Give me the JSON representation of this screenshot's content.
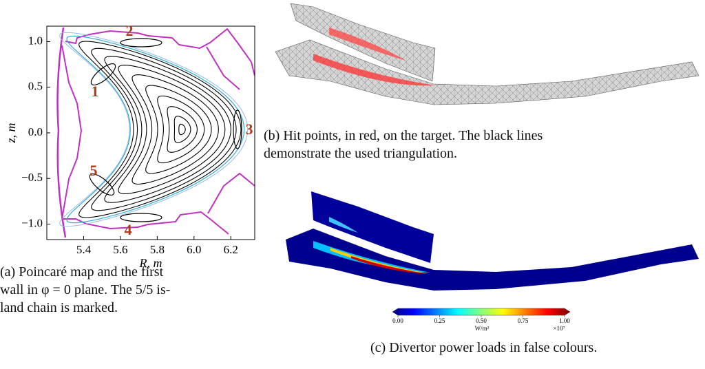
{
  "panel_a": {
    "type": "poincare",
    "xlabel": "R, m",
    "ylabel": "z, m",
    "xlim": [
      5.2,
      6.33
    ],
    "ylim": [
      -1.17,
      1.17
    ],
    "xticks": [
      5.4,
      5.6,
      5.8,
      {
        "value": 6,
        "label": "6.0"
      },
      6.2
    ],
    "yticks": [
      {
        "value": 1,
        "label": "1.0"
      },
      0.5,
      {
        "value": 0,
        "label": "0.0"
      },
      {
        "value": -0.5,
        "label": "−0.5"
      },
      {
        "value": -1,
        "label": "−1.0"
      }
    ],
    "islands": [
      "1",
      "2",
      "3",
      "4",
      "5"
    ],
    "caption": [
      "(a) Poincaré map and the first",
      "wall in φ = 0 plane. The 5/5 is-",
      "land chain is marked."
    ]
  },
  "panel_b": {
    "caption": [
      "(b) Hit points, in red, on the target. The black lines",
      "demonstrate the used triangulation."
    ]
  },
  "panel_c": {
    "colorbar_ticks": [
      "0.00",
      "0.25",
      "0.50",
      "0.75",
      "1.00"
    ],
    "colorbar_unit": "W/m²",
    "colorbar_multiplier": "×10⁷",
    "caption": [
      "(c) Divertor power loads in false colours."
    ]
  }
}
